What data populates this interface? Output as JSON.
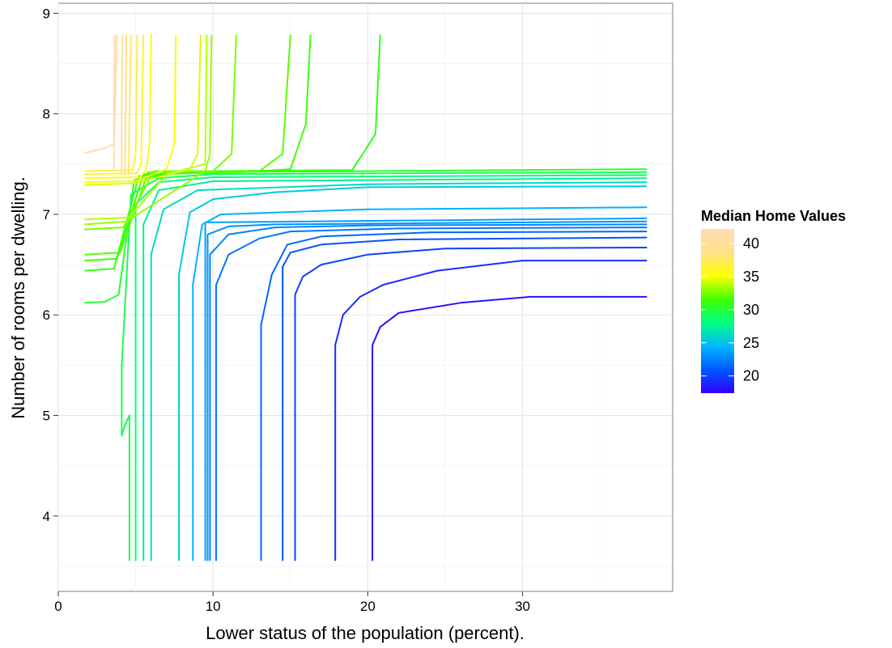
{
  "chart_data": {
    "type": "contour",
    "xlabel": "Lower status of the population (percent).",
    "ylabel": "Number of rooms per dwelling.",
    "xlim": [
      0,
      39.7
    ],
    "ylim": [
      3.25,
      9.1
    ],
    "x_ticks": [
      0,
      10,
      20,
      30
    ],
    "y_ticks": [
      4,
      5,
      6,
      7,
      8,
      9
    ],
    "grid": true,
    "legend": {
      "title": "Median Home Values",
      "placement": "right",
      "range": [
        17.4,
        42.2
      ],
      "ticks": [
        20,
        25,
        30,
        35,
        40
      ],
      "colors": [
        "#2f00ff",
        "#0057ff",
        "#00b7ff",
        "#00ff80",
        "#40ff00",
        "#ffff00",
        "#ffe08a",
        "#ffdcb4"
      ]
    },
    "x_data_range": [
      1.73,
      37.97
    ],
    "y_data_range": [
      3.56,
      8.78
    ],
    "contours": [
      {
        "level": 18.2,
        "path": [
          [
            20.3,
            3.56
          ],
          [
            20.3,
            5.7
          ],
          [
            20.8,
            5.88
          ],
          [
            22,
            6.02
          ],
          [
            26,
            6.12
          ],
          [
            30.5,
            6.18
          ],
          [
            38,
            6.18
          ]
        ]
      },
      {
        "level": 19.2,
        "path": [
          [
            17.9,
            3.56
          ],
          [
            17.9,
            5.7
          ],
          [
            18.4,
            6.0
          ],
          [
            19.5,
            6.18
          ],
          [
            21,
            6.3
          ],
          [
            24.5,
            6.44
          ],
          [
            30,
            6.54
          ],
          [
            38,
            6.54
          ]
        ]
      },
      {
        "level": 20.0,
        "path": [
          [
            15.3,
            3.56
          ],
          [
            15.3,
            6.2
          ],
          [
            15.8,
            6.38
          ],
          [
            17,
            6.5
          ],
          [
            20,
            6.6
          ],
          [
            25,
            6.66
          ],
          [
            38,
            6.67
          ]
        ]
      },
      {
        "level": 20.8,
        "path": [
          [
            14.5,
            3.56
          ],
          [
            14.5,
            6.48
          ],
          [
            15,
            6.62
          ],
          [
            17,
            6.7
          ],
          [
            22,
            6.75
          ],
          [
            38,
            6.77
          ]
        ]
      },
      {
        "level": 21.5,
        "path": [
          [
            13.1,
            3.56
          ],
          [
            13.1,
            5.9
          ],
          [
            13.8,
            6.4
          ],
          [
            14.8,
            6.7
          ],
          [
            17,
            6.78
          ],
          [
            24,
            6.82
          ],
          [
            38,
            6.83
          ]
        ]
      },
      {
        "level": 22.1,
        "path": [
          [
            10.2,
            3.56
          ],
          [
            10.2,
            6.3
          ],
          [
            11,
            6.6
          ],
          [
            13,
            6.76
          ],
          [
            15,
            6.83
          ],
          [
            22,
            6.86
          ],
          [
            38,
            6.87
          ]
        ]
      },
      {
        "level": 22.6,
        "path": [
          [
            9.8,
            3.56
          ],
          [
            9.8,
            6.6
          ],
          [
            11,
            6.8
          ],
          [
            14,
            6.87
          ],
          [
            20,
            6.89
          ],
          [
            38,
            6.9
          ]
        ]
      },
      {
        "level": 23.1,
        "path": [
          [
            9.65,
            3.56
          ],
          [
            9.65,
            6.8
          ],
          [
            11,
            6.88
          ],
          [
            14,
            6.9
          ],
          [
            38,
            6.93
          ]
        ]
      },
      {
        "level": 23.6,
        "path": [
          [
            9.5,
            3.56
          ],
          [
            9.5,
            6.92
          ],
          [
            38,
            6.96
          ]
        ]
      },
      {
        "level": 24.3,
        "path": [
          [
            8.7,
            3.56
          ],
          [
            8.7,
            6.3
          ],
          [
            9.3,
            6.9
          ],
          [
            10.5,
            7.0
          ],
          [
            20,
            7.05
          ],
          [
            38,
            7.07
          ]
        ]
      },
      {
        "level": 25.3,
        "path": [
          [
            7.8,
            3.56
          ],
          [
            7.8,
            6.4
          ],
          [
            8.5,
            7.02
          ],
          [
            10,
            7.15
          ],
          [
            14,
            7.22
          ],
          [
            20,
            7.27
          ],
          [
            38,
            7.28
          ]
        ]
      },
      {
        "level": 26.3,
        "path": [
          [
            6.0,
            3.56
          ],
          [
            6.0,
            6.6
          ],
          [
            6.8,
            7.05
          ],
          [
            9,
            7.24
          ],
          [
            20,
            7.3
          ],
          [
            38,
            7.32
          ]
        ]
      },
      {
        "level": 27.3,
        "path": [
          [
            5.5,
            3.56
          ],
          [
            5.5,
            6.9
          ],
          [
            6.5,
            7.24
          ],
          [
            10,
            7.33
          ],
          [
            38,
            7.36
          ]
        ]
      },
      {
        "level": 28.3,
        "path": [
          [
            5.0,
            3.56
          ],
          [
            5.0,
            7.1
          ],
          [
            6.5,
            7.32
          ],
          [
            10,
            7.37
          ],
          [
            38,
            7.39
          ]
        ]
      },
      {
        "level": 29.3,
        "path": [
          [
            4.6,
            3.56
          ],
          [
            4.6,
            5.0
          ],
          [
            4.3,
            4.9
          ],
          [
            4.1,
            4.8
          ],
          [
            4.1,
            5.5
          ],
          [
            4.7,
            7.2
          ],
          [
            6.5,
            7.36
          ],
          [
            10,
            7.4
          ],
          [
            38,
            7.42
          ]
        ]
      },
      {
        "level": 30.3,
        "path": [
          [
            1.73,
            6.12
          ],
          [
            3.0,
            6.13
          ],
          [
            3.9,
            6.2
          ],
          [
            4.9,
            7.34
          ],
          [
            7,
            7.4
          ],
          [
            10,
            7.42
          ],
          [
            38,
            7.45
          ]
        ]
      },
      {
        "level": 30.8,
        "path": [
          [
            1.73,
            6.44
          ],
          [
            3.6,
            6.46
          ],
          [
            5.2,
            7.38
          ],
          [
            10,
            7.43
          ],
          [
            19,
            7.44
          ],
          [
            20.5,
            7.8
          ],
          [
            20.8,
            8.78
          ]
        ]
      },
      {
        "level": 31.4,
        "path": [
          [
            1.73,
            6.54
          ],
          [
            3.8,
            6.56
          ],
          [
            5.5,
            7.4
          ],
          [
            12,
            7.42
          ],
          [
            15,
            7.45
          ],
          [
            16,
            7.9
          ],
          [
            16.3,
            8.78
          ]
        ]
      },
      {
        "level": 32.0,
        "path": [
          [
            1.73,
            6.6
          ],
          [
            4.0,
            6.62
          ],
          [
            5.8,
            7.42
          ],
          [
            13,
            7.43
          ],
          [
            14.5,
            7.6
          ],
          [
            15,
            8.78
          ]
        ]
      },
      {
        "level": 32.6,
        "path": [
          [
            1.73,
            6.85
          ],
          [
            4.2,
            6.87
          ],
          [
            6.2,
            7.43
          ],
          [
            10,
            7.43
          ],
          [
            11.2,
            7.6
          ],
          [
            11.5,
            8.78
          ]
        ]
      },
      {
        "level": 33.2,
        "path": [
          [
            1.73,
            6.9
          ],
          [
            4.4,
            6.93
          ],
          [
            9.5,
            7.43
          ],
          [
            9.8,
            7.6
          ],
          [
            9.9,
            8.78
          ]
        ]
      },
      {
        "level": 33.8,
        "path": [
          [
            1.73,
            6.95
          ],
          [
            4.6,
            6.97
          ],
          [
            7,
            7.4
          ],
          [
            9.5,
            7.5
          ],
          [
            9.6,
            8.78
          ]
        ]
      },
      {
        "level": 34.4,
        "path": [
          [
            1.73,
            7.29
          ],
          [
            5,
            7.31
          ],
          [
            8.5,
            7.45
          ],
          [
            9.0,
            7.6
          ],
          [
            9.2,
            8.78
          ]
        ]
      },
      {
        "level": 35.0,
        "path": [
          [
            1.73,
            7.32
          ],
          [
            5.0,
            7.33
          ],
          [
            7.0,
            7.45
          ],
          [
            7.5,
            7.7
          ],
          [
            7.6,
            8.78
          ]
        ]
      },
      {
        "level": 35.6,
        "path": [
          [
            1.73,
            7.36
          ],
          [
            5.3,
            7.37
          ],
          [
            5.7,
            7.45
          ],
          [
            5.9,
            7.7
          ],
          [
            6.0,
            8.78
          ]
        ]
      },
      {
        "level": 36.2,
        "path": [
          [
            1.73,
            7.4
          ],
          [
            5.1,
            7.41
          ],
          [
            5.35,
            7.5
          ],
          [
            5.5,
            8.78
          ]
        ]
      },
      {
        "level": 37.0,
        "path": [
          [
            1.73,
            7.43
          ],
          [
            4.8,
            7.44
          ],
          [
            5.0,
            7.6
          ],
          [
            5.1,
            8.78
          ]
        ]
      },
      {
        "level": 38.0,
        "path": [
          [
            4.55,
            7.4
          ],
          [
            4.6,
            8.0
          ],
          [
            4.7,
            8.78
          ]
        ]
      },
      {
        "level": 39.0,
        "path": [
          [
            4.3,
            7.4
          ],
          [
            4.35,
            8.0
          ],
          [
            4.4,
            8.78
          ]
        ]
      },
      {
        "level": 40.0,
        "path": [
          [
            4.1,
            7.4
          ],
          [
            4.1,
            8.0
          ],
          [
            4.15,
            8.78
          ]
        ]
      },
      {
        "level": 41.0,
        "path": [
          [
            1.73,
            7.61
          ],
          [
            3.0,
            7.66
          ],
          [
            3.6,
            7.7
          ],
          [
            3.8,
            8.78
          ]
        ]
      },
      {
        "level": 41.8,
        "path": [
          [
            3.6,
            7.44
          ],
          [
            3.6,
            8.0
          ],
          [
            3.65,
            8.78
          ]
        ]
      }
    ]
  }
}
